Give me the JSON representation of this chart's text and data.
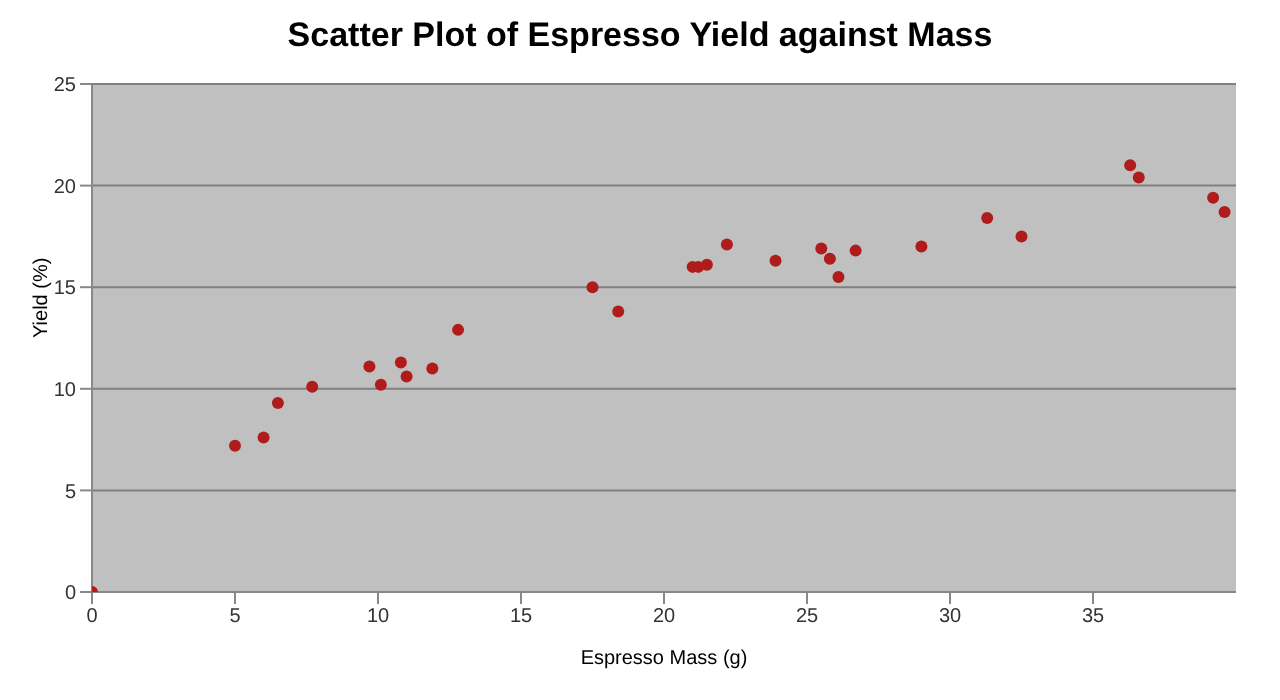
{
  "chart_data": {
    "type": "scatter",
    "title": "Scatter Plot of Espresso Yield against Mass",
    "xlabel": "Espresso Mass (g)",
    "ylabel": "Yield (%)",
    "x": [
      0,
      5.0,
      6.0,
      6.5,
      7.7,
      9.7,
      10.1,
      10.8,
      11.0,
      11.9,
      12.8,
      17.5,
      18.4,
      21.0,
      21.2,
      21.5,
      22.2,
      23.9,
      25.5,
      25.8,
      26.1,
      26.7,
      29.0,
      31.3,
      32.5,
      36.3,
      36.6,
      39.2,
      39.6
    ],
    "series": [
      {
        "color": "#b01c1c",
        "values": [
          0,
          7.2,
          7.6,
          9.3,
          10.1,
          11.1,
          10.2,
          11.3,
          10.6,
          11.0,
          12.9,
          15.0,
          13.8,
          16.0,
          16.0,
          16.1,
          17.1,
          16.3,
          16.9,
          16.4,
          15.5,
          16.8,
          17.0,
          18.4,
          17.5,
          21.0,
          20.4,
          19.4,
          18.7
        ]
      }
    ],
    "xlim": [
      0,
      40
    ],
    "xticks": [
      0,
      5,
      10,
      15,
      20,
      25,
      30,
      35
    ],
    "ylim": [
      0,
      25
    ],
    "yticks": [
      0,
      5,
      10,
      15,
      20,
      25
    ],
    "grid": "y",
    "marker": "circle"
  }
}
